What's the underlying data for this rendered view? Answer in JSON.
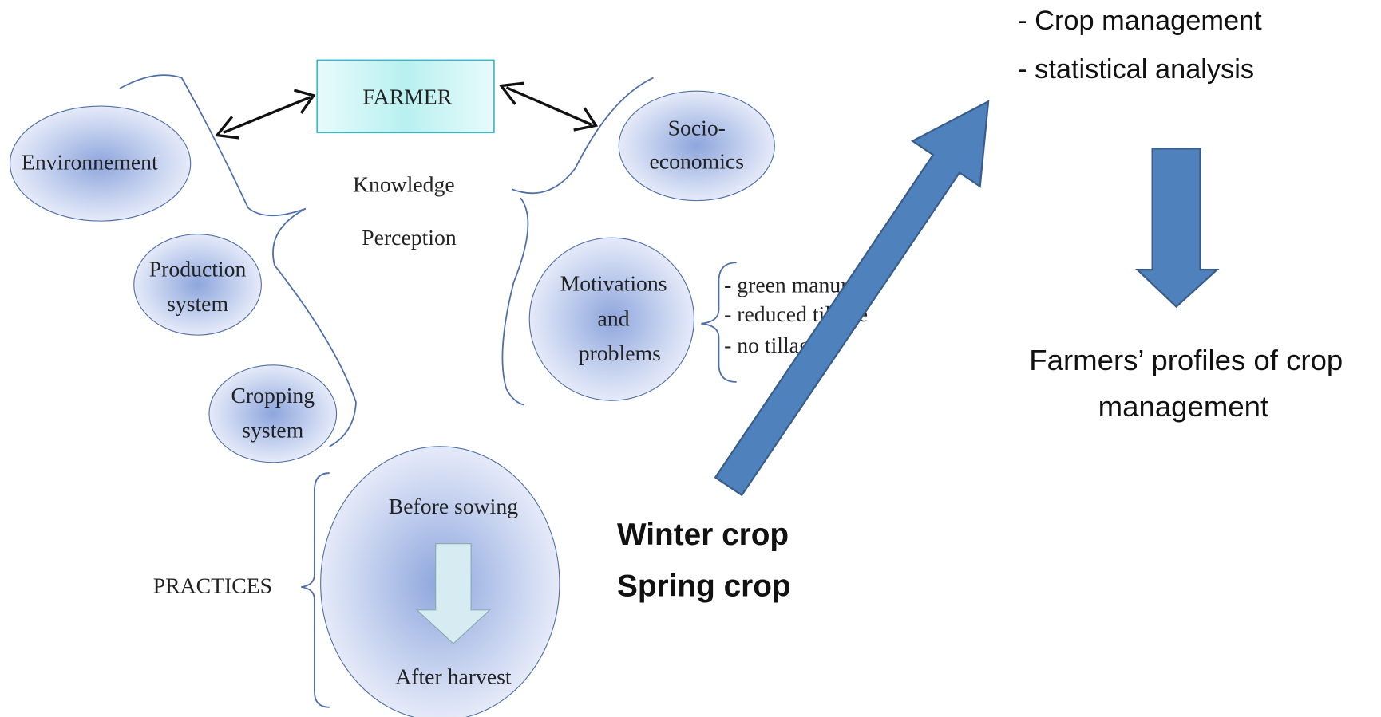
{
  "header": {
    "lines": [
      "- Crop management",
      "- statistical analysis"
    ]
  },
  "farmer": {
    "label": "FARMER",
    "lines": [
      "Knowledge",
      "Perception"
    ]
  },
  "nodes": [
    {
      "id": "environnement",
      "lines": [
        "Environnement"
      ]
    },
    {
      "id": "socio",
      "lines": [
        "Socio-",
        "economics"
      ]
    },
    {
      "id": "production",
      "lines": [
        "Production",
        "system"
      ]
    },
    {
      "id": "motivations",
      "lines": [
        "Motivations",
        "and",
        "problems"
      ]
    },
    {
      "id": "cropping",
      "lines": [
        "Cropping",
        "system"
      ]
    }
  ],
  "motivation_list": [
    "- green manures",
    "- reduced tillage",
    "- no tillage"
  ],
  "practices": {
    "label": "PRACTICES",
    "before": "Before sowing",
    "after": "After harvest"
  },
  "crops": [
    "Winter crop",
    "Spring crop"
  ],
  "result": {
    "lines": [
      "Farmers’ profiles of crop",
      "management"
    ]
  }
}
